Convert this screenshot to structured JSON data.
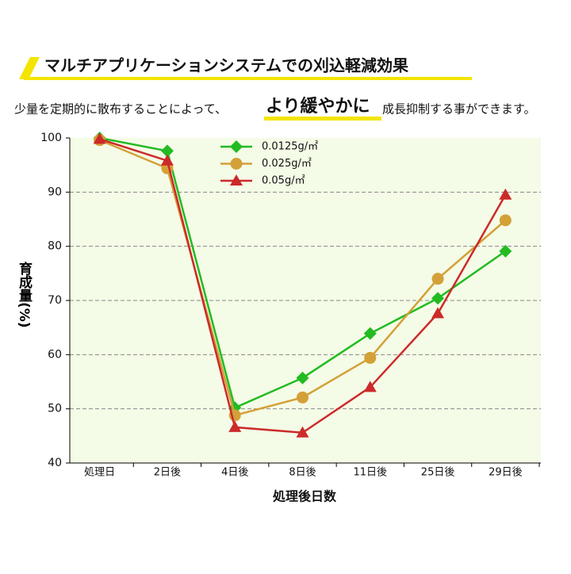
{
  "chart_data": {
    "type": "line",
    "title": "マルチアプリケーションシステムでの刈込軽減効果",
    "subtitle_parts": [
      "少量を定期的に散布することによって、",
      "より緩やかに",
      "成長抑制する事ができます。"
    ],
    "x_label": "処理後日数",
    "y_label": "育成量(%)",
    "categories": [
      "処理日",
      "2日後",
      "4日後",
      "8日後",
      "11日後",
      "25日後",
      "29日後"
    ],
    "series": [
      {
        "name": "0.0125g/㎡",
        "color": "#22bb22",
        "marker": "diamond",
        "values": [
          100,
          97.6,
          50.2,
          55.7,
          63.9,
          70.4,
          79.1
        ]
      },
      {
        "name": "0.025g/㎡",
        "color": "#d4a038",
        "marker": "circle",
        "values": [
          99.6,
          94.4,
          48.8,
          52.1,
          59.4,
          74.0,
          84.8
        ]
      },
      {
        "name": "0.05g/㎡",
        "color": "#cc2a2a",
        "marker": "triangle",
        "values": [
          99.8,
          95.8,
          46.6,
          45.6,
          54.0,
          67.6,
          89.5
        ]
      }
    ],
    "ylim": [
      40,
      100
    ],
    "yticks": [
      40,
      50,
      60,
      70,
      80,
      90,
      100
    ],
    "grid": true
  }
}
